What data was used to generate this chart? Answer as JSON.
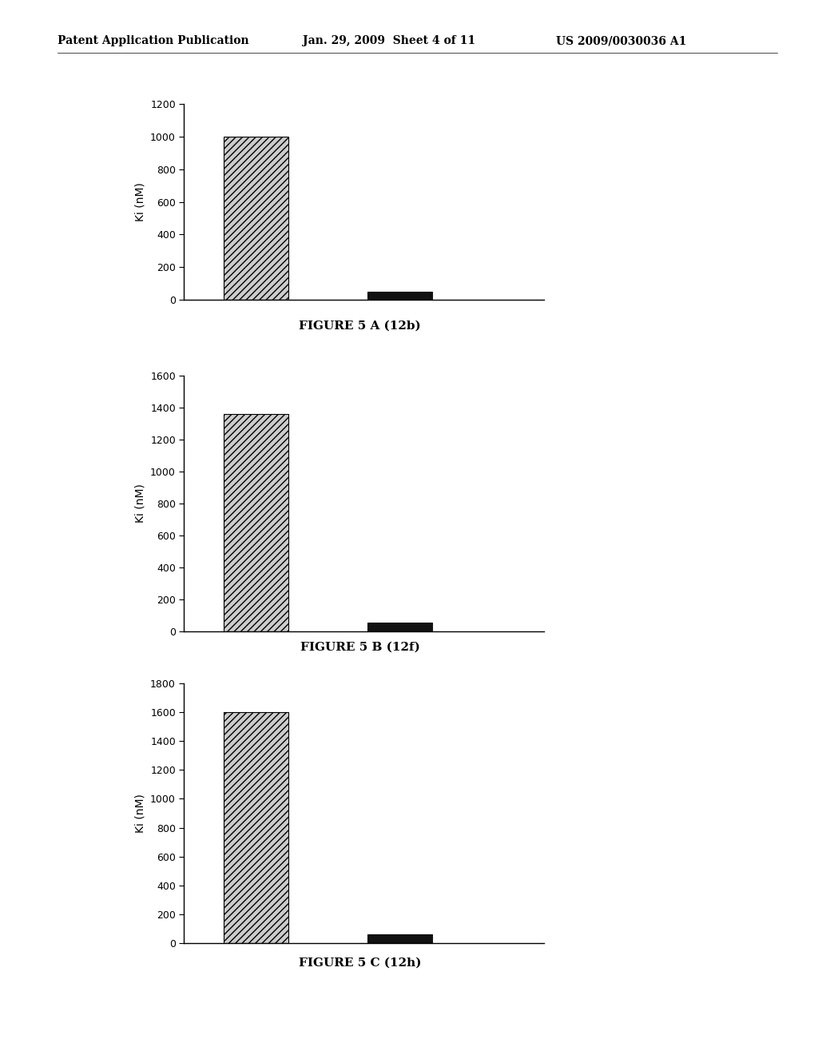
{
  "header_left": "Patent Application Publication",
  "header_mid": "Jan. 29, 2009  Sheet 4 of 11",
  "header_right": "US 2009/0030036 A1",
  "charts": [
    {
      "values": [
        1000,
        50
      ],
      "ylim": [
        0,
        1200
      ],
      "yticks": [
        0,
        200,
        400,
        600,
        800,
        1000,
        1200
      ],
      "ylabel": "Ki (nM)",
      "caption": "FIGURE 5 A (12b)"
    },
    {
      "values": [
        1360,
        55
      ],
      "ylim": [
        0,
        1600
      ],
      "yticks": [
        0,
        200,
        400,
        600,
        800,
        1000,
        1200,
        1400,
        1600
      ],
      "ylabel": "Ki (nM)",
      "caption": "FIGURE 5 B (12f)"
    },
    {
      "values": [
        1600,
        60
      ],
      "ylim": [
        0,
        1800
      ],
      "yticks": [
        0,
        200,
        400,
        600,
        800,
        1000,
        1200,
        1400,
        1600,
        1800
      ],
      "ylabel": "Ki (nM)",
      "caption": "FIGURE 5 C (12h)"
    }
  ],
  "background_color": "#ffffff",
  "hatch_pattern": "////",
  "bar1_facecolor": "#cccccc",
  "bar1_edgecolor": "#000000",
  "bar2_facecolor": "#111111",
  "bar2_edgecolor": "#111111",
  "bar_width": 0.45,
  "header_fontsize": 10,
  "ylabel_fontsize": 10,
  "tick_fontsize": 9,
  "caption_fontsize": 11,
  "caption_fontweight": "bold"
}
